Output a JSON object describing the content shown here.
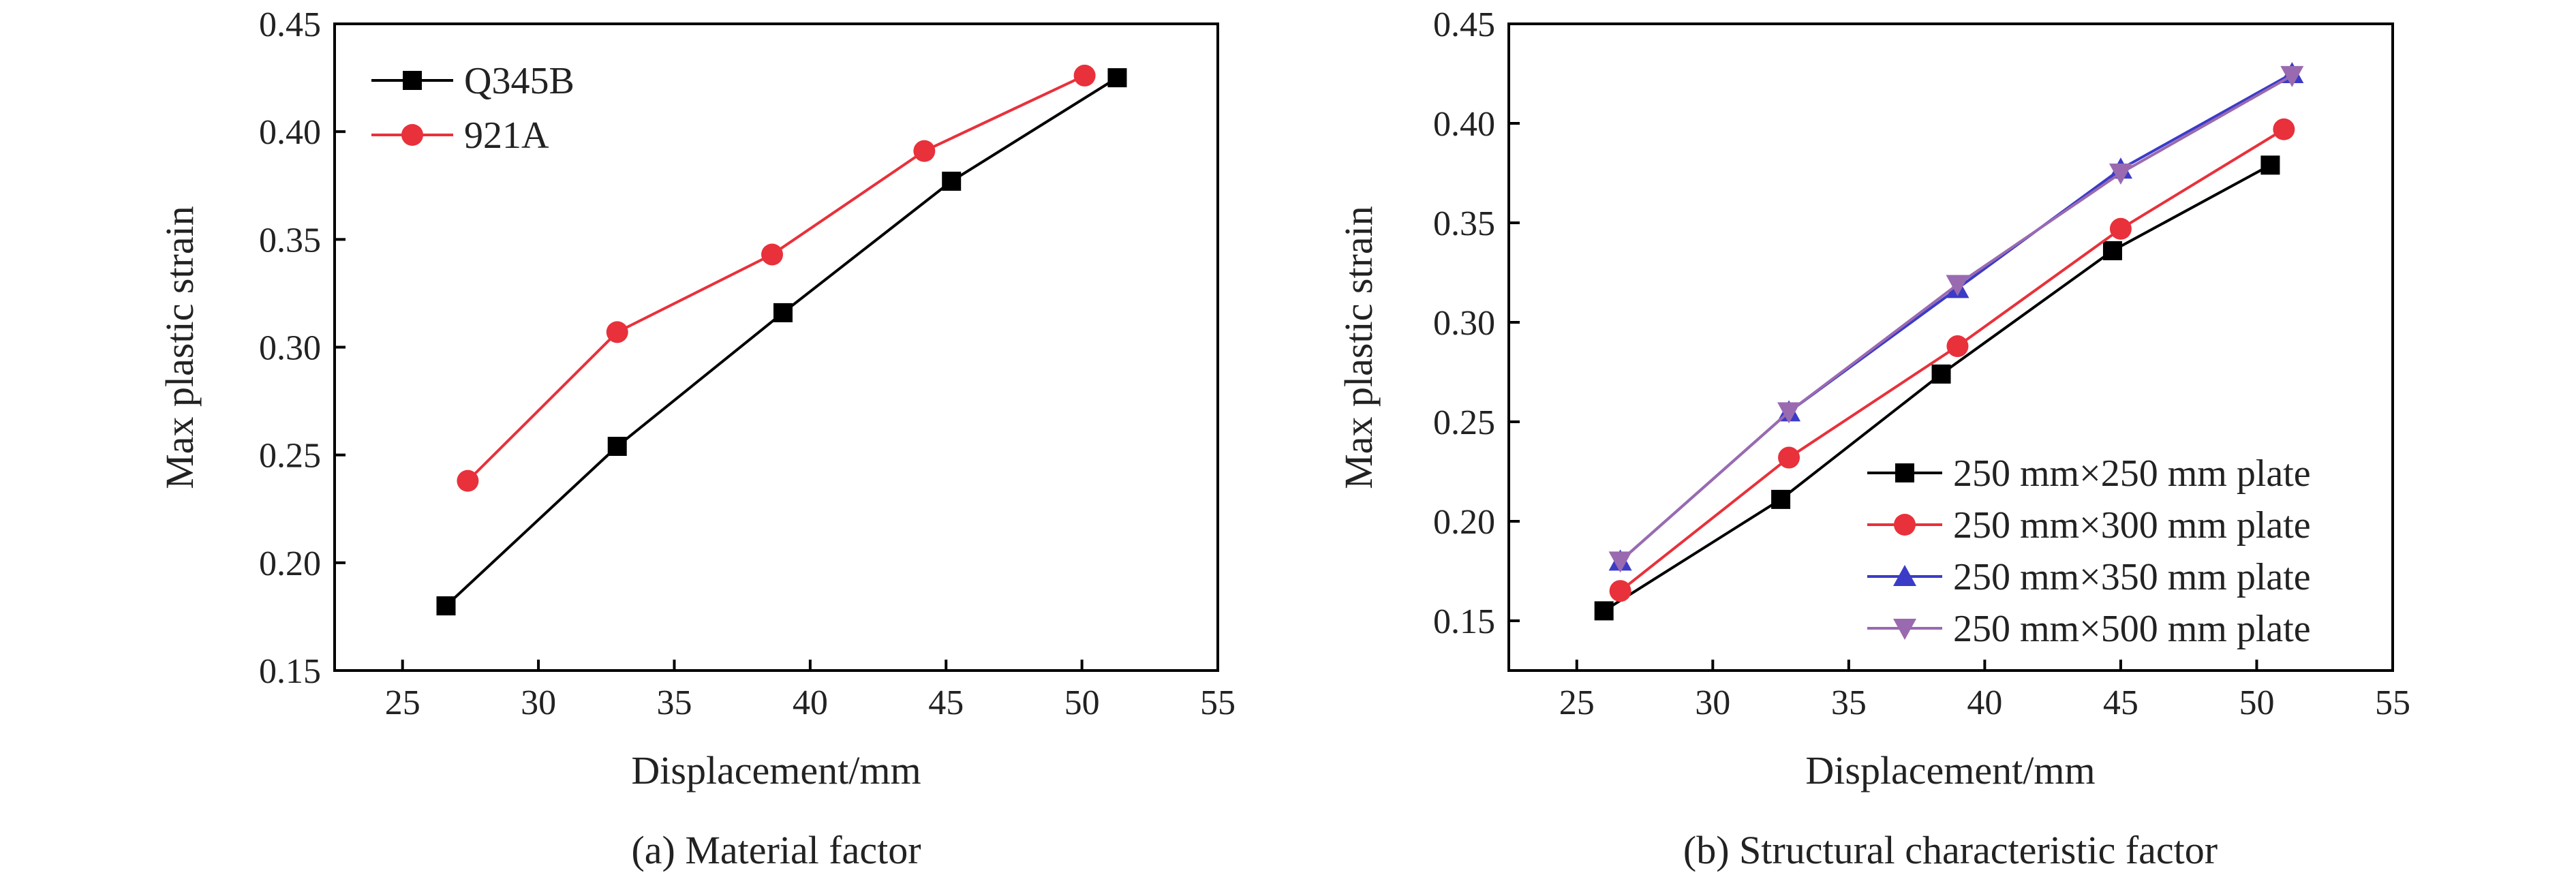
{
  "chart_data": [
    {
      "type": "line",
      "caption": "(a) Material factor",
      "xlabel": "Displacement/mm",
      "ylabel": "Max plastic strain",
      "xlim": [
        22.5,
        55
      ],
      "ylim": [
        0.15,
        0.45
      ],
      "xticks": [
        25,
        30,
        35,
        40,
        45,
        50,
        55
      ],
      "yticks": [
        0.15,
        0.2,
        0.25,
        0.3,
        0.35,
        0.4,
        0.45
      ],
      "xtick_labels": [
        "25",
        "30",
        "35",
        "40",
        "45",
        "50",
        "55"
      ],
      "ytick_labels": [
        "0.15",
        "0.20",
        "0.25",
        "0.30",
        "0.35",
        "0.40",
        "0.45"
      ],
      "legend_position": "top-left",
      "series": [
        {
          "name": "Q345B",
          "color": "#000000",
          "marker": "square",
          "x": [
            26.6,
            32.9,
            39.0,
            45.2,
            51.3
          ],
          "y": [
            0.18,
            0.254,
            0.316,
            0.377,
            0.425
          ]
        },
        {
          "name": "921A",
          "color": "#e8313b",
          "marker": "circle",
          "x": [
            27.4,
            32.9,
            38.6,
            44.2,
            50.1
          ],
          "y": [
            0.238,
            0.307,
            0.343,
            0.391,
            0.426
          ]
        }
      ]
    },
    {
      "type": "line",
      "caption": "(b) Structural characteristic factor",
      "xlabel": "Displacement/mm",
      "ylabel": "Max plastic strain",
      "xlim": [
        22.5,
        55
      ],
      "ylim": [
        0.125,
        0.45
      ],
      "xticks": [
        25,
        30,
        35,
        40,
        45,
        50,
        55
      ],
      "yticks": [
        0.15,
        0.2,
        0.25,
        0.3,
        0.35,
        0.4,
        0.45
      ],
      "xtick_labels": [
        "25",
        "30",
        "35",
        "40",
        "45",
        "50",
        "55"
      ],
      "ytick_labels": [
        "0.15",
        "0.20",
        "0.25",
        "0.30",
        "0.35",
        "0.40",
        "0.45"
      ],
      "legend_position": "bottom-right",
      "series": [
        {
          "name": "250 mm×250 mm plate",
          "color": "#000000",
          "marker": "square",
          "x": [
            26.0,
            32.5,
            38.4,
            44.7,
            50.5
          ],
          "y": [
            0.155,
            0.211,
            0.274,
            0.336,
            0.379
          ]
        },
        {
          "name": "250 mm×300 mm plate",
          "color": "#e8313b",
          "marker": "circle",
          "x": [
            26.6,
            32.8,
            39.0,
            45.0,
            51.0
          ],
          "y": [
            0.165,
            0.232,
            0.288,
            0.347,
            0.397
          ]
        },
        {
          "name": "250 mm×350 mm plate",
          "color": "#3b3bc8",
          "marker": "triangle-up",
          "x": [
            26.6,
            32.8,
            39.0,
            45.0,
            51.3
          ],
          "y": [
            0.18,
            0.255,
            0.317,
            0.377,
            0.425
          ]
        },
        {
          "name": "250 mm×500 mm plate",
          "color": "#9a6ab0",
          "marker": "triangle-down",
          "x": [
            26.6,
            32.8,
            39.0,
            45.0,
            51.3
          ],
          "y": [
            0.18,
            0.255,
            0.319,
            0.375,
            0.424
          ]
        }
      ]
    }
  ]
}
